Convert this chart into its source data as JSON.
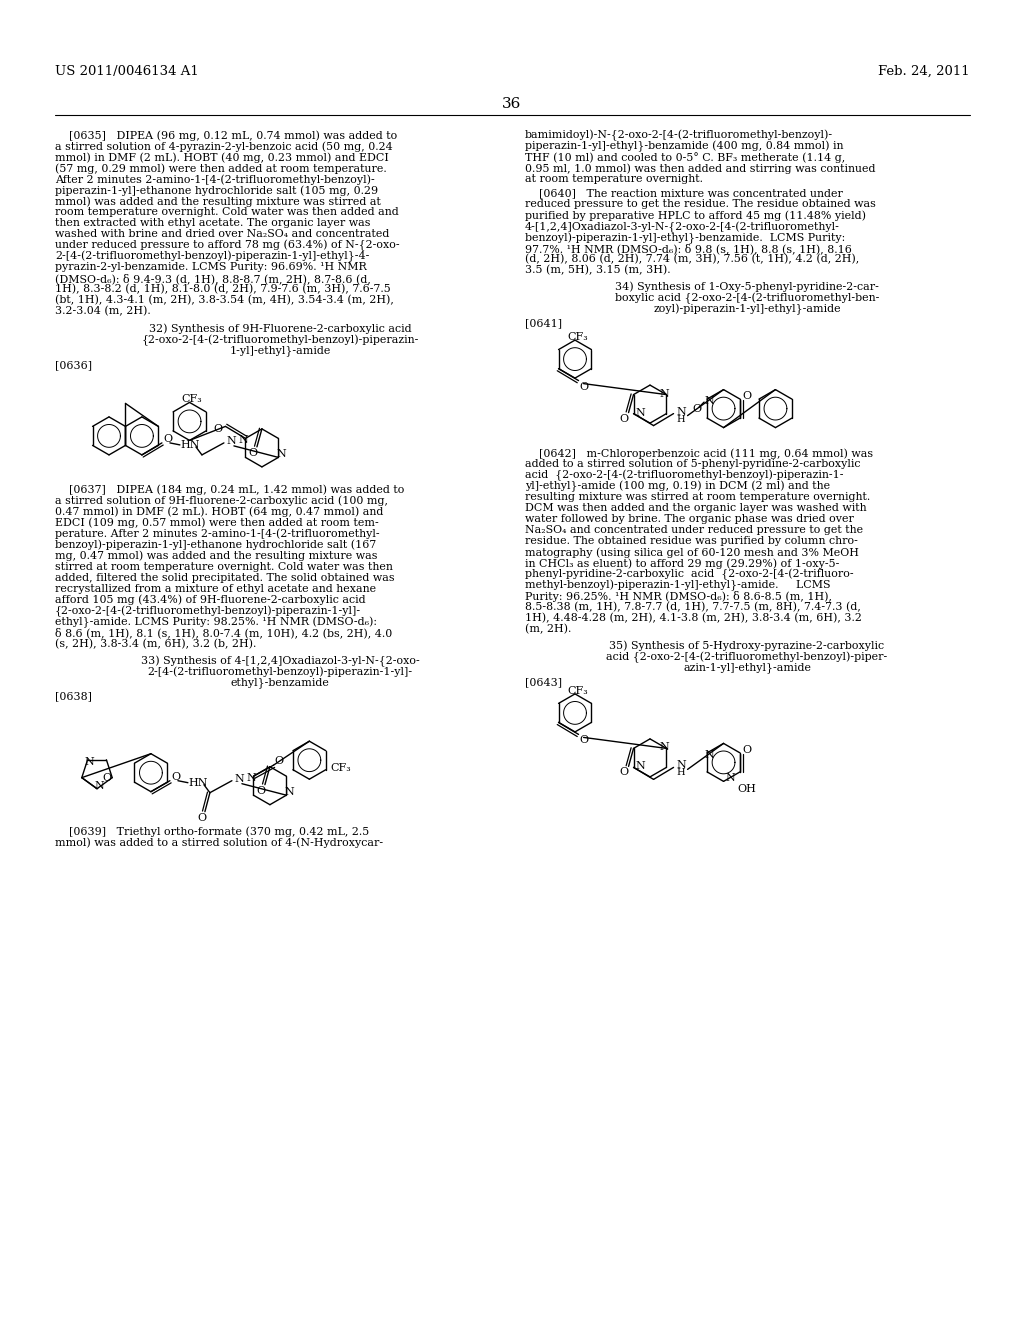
{
  "background_color": "#ffffff",
  "header_left": "US 2011/0046134 A1",
  "header_right": "Feb. 24, 2011",
  "page_number": "36",
  "lm": 55,
  "rm": 970,
  "cs": 505,
  "fs": 7.9
}
